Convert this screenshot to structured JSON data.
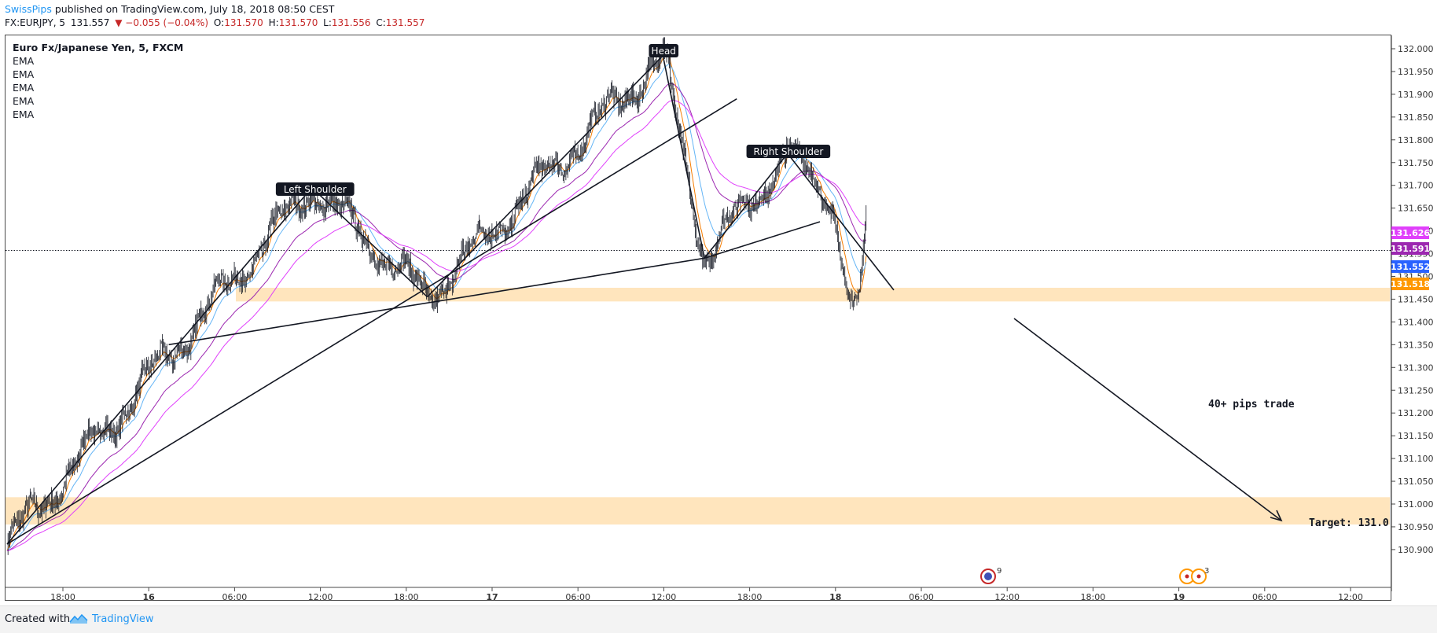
{
  "header": {
    "author": "SwissPips",
    "published": "published on TradingView.com, July 18, 2018 08:50 CEST",
    "symbol": "FX:EURJPY, 5",
    "last": "131.557",
    "change": "▼ −0.055 (−0.04%)",
    "o_label": "O:",
    "o": "131.570",
    "h_label": "H:",
    "h": "131.570",
    "l_label": "L:",
    "l": "131.556",
    "c_label": "C:",
    "c": "131.557"
  },
  "legend": {
    "title": "Euro Fx/Japanese Yen, 5, FXCM",
    "items": [
      "EMA",
      "EMA",
      "EMA",
      "EMA",
      "EMA"
    ]
  },
  "footer": {
    "created": "Created with",
    "brand": "TradingView"
  },
  "colors": {
    "axis_line": "#4a4a4a",
    "candle": "#131722",
    "ema_fast": "#f57c00",
    "ema_blue": "#64b5f6",
    "ema_violet": "#9c27b0",
    "ema_magenta": "#e040fb",
    "zone": "#ffe0b2",
    "badge_magenta": "#e040fb",
    "badge_violet": "#9c27b0",
    "badge_blue": "#2962ff",
    "badge_orange": "#ff9800"
  },
  "chart_data": {
    "type": "candlestick",
    "price_axis": {
      "ticks": [
        "132.000",
        "131.950",
        "131.900",
        "131.850",
        "131.800",
        "131.750",
        "131.700",
        "131.650",
        "131.600",
        "131.550",
        "131.500",
        "131.450",
        "131.400",
        "131.350",
        "131.300",
        "131.250",
        "131.200",
        "131.150",
        "131.100",
        "131.050",
        "131.000",
        "130.950",
        "130.900"
      ],
      "min": 130.875,
      "max": 132.025
    },
    "time_axis": {
      "ticks": [
        "18:00",
        "16",
        "06:00",
        "12:00",
        "18:00",
        "17",
        "06:00",
        "12:00",
        "18:00",
        "18",
        "06:00",
        "12:00",
        "18:00",
        "19",
        "06:00",
        "12:00"
      ]
    },
    "price_badges": [
      {
        "value": "131.626",
        "price": 131.626,
        "color_key": "badge_magenta"
      },
      {
        "value": "131.591",
        "price": 131.591,
        "color_key": "badge_violet"
      },
      {
        "value": "131.552",
        "price": 131.552,
        "color_key": "badge_blue"
      },
      {
        "value": "131.518",
        "price": 131.518,
        "color_key": "badge_orange"
      }
    ],
    "current_price": 131.557,
    "support_zones": [
      {
        "from": 131.445,
        "to": 131.475
      },
      {
        "from": 130.955,
        "to": 131.015
      }
    ],
    "annotations": {
      "left_shoulder": "Left Shoulder",
      "head": "Head",
      "right_shoulder": "Right Shoulder",
      "trade_note": "40+ pips trade",
      "target": "Target: 131.0"
    },
    "pattern_points": [
      {
        "label": "start",
        "bar": 0,
        "price": 130.912
      },
      {
        "label": "left_shoulder",
        "bar": 330,
        "price": 131.695
      },
      {
        "label": "neck_left",
        "bar": 455,
        "price": 131.455
      },
      {
        "label": "head",
        "bar": 710,
        "price": 131.985
      },
      {
        "label": "neck_right",
        "bar": 755,
        "price": 131.54
      },
      {
        "label": "right_shoulder",
        "bar": 845,
        "price": 131.77
      },
      {
        "label": "end",
        "bar": 930,
        "price": 131.6
      }
    ],
    "events": [
      {
        "label": "9",
        "bar": 965
      },
      {
        "label": "3",
        "bar": 1165
      }
    ]
  }
}
